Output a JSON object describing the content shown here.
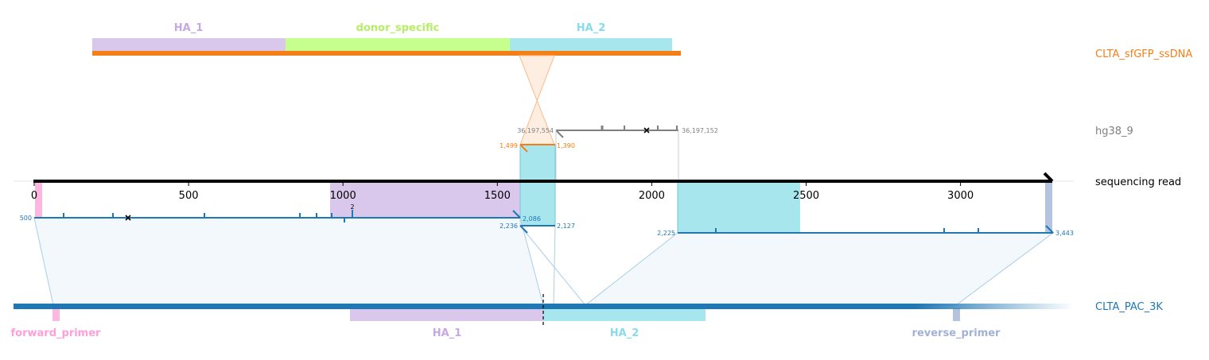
{
  "colors": {
    "ha1": "#d9c7ec",
    "ha1_text": "#c8a8e4",
    "donor": "#c6ff8e",
    "donor_text": "#b6ee66",
    "ha2": "#a8e6ee",
    "ha2_text": "#86dcea",
    "donor_line": "#f57f17",
    "hg38": "#7f7f7f",
    "read": "#000000",
    "target": "#1f77b4",
    "forward_primer": "#ff9fd8",
    "reverse_primer": "#b4c4de",
    "fill_target": "#e9f3f9",
    "fill_donor": "#fde7d4"
  },
  "track_labels": {
    "donor": "CLTA_sfGFP_ssDNA",
    "hg38": "hg38_9",
    "read": "sequencing read",
    "target": "CLTA_PAC_3K"
  },
  "donor_features": [
    {
      "name": "HA_1",
      "color": "ha1",
      "text_color": "ha1_text"
    },
    {
      "name": "donor_specific",
      "color": "donor",
      "text_color": "donor_text"
    },
    {
      "name": "HA_2",
      "color": "ha2",
      "text_color": "ha2_text"
    }
  ],
  "target_features": [
    {
      "name": "forward_primer",
      "color": "forward_primer",
      "text_color": "forward_primer"
    },
    {
      "name": "HA_1",
      "color": "ha1",
      "text_color": "ha1_text"
    },
    {
      "name": "HA_2",
      "color": "ha2",
      "text_color": "ha2_text"
    },
    {
      "name": "reverse_primer",
      "color": "reverse_primer",
      "text_color": "reverse_primer"
    }
  ],
  "read_axis": {
    "min": 0,
    "max": 3300,
    "ticks": [
      0,
      500,
      1000,
      1500,
      2000,
      2500,
      3000
    ]
  },
  "alignments": {
    "target_1": {
      "label_start": "500",
      "label_end": "2,086"
    },
    "target_2": {
      "label_start": "2,236",
      "label_end": "2,127"
    },
    "target_3": {
      "label_start": "2,225",
      "label_end": "3,443"
    },
    "donor": {
      "label_start": "1,499",
      "label_end": "1,390"
    },
    "hg38": {
      "label_start": "36,197,554",
      "label_end": "36,197,152"
    },
    "insertion_count": "2"
  }
}
